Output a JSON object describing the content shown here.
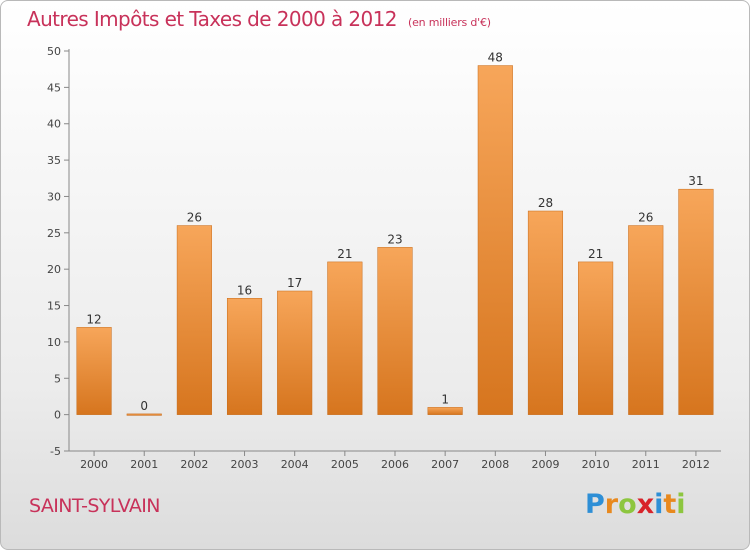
{
  "header": {
    "title": "Autres Impôts et Taxes de 2000 à 2012",
    "subtitle": "(en milliers d'€)"
  },
  "commune": "SAINT-SYLVAIN",
  "logo": {
    "text": "Proxiti",
    "letters": [
      {
        "ch": "P",
        "color": "#2e8fd6"
      },
      {
        "ch": "r",
        "color": "#e8891e"
      },
      {
        "ch": "o",
        "color": "#8dc63f"
      },
      {
        "ch": "x",
        "color": "#d8232a"
      },
      {
        "ch": "i",
        "color": "#2e8fd6"
      },
      {
        "ch": "t",
        "color": "#e8891e"
      },
      {
        "ch": "i",
        "color": "#8dc63f"
      }
    ]
  },
  "colors": {
    "title": "#c8325a",
    "bar_light": "#f7a65a",
    "bar_dark": "#d6751e",
    "axis": "#888888"
  },
  "chart_data": {
    "type": "bar",
    "categories": [
      "2000",
      "2001",
      "2002",
      "2003",
      "2004",
      "2005",
      "2006",
      "2007",
      "2008",
      "2009",
      "2010",
      "2011",
      "2012"
    ],
    "values": [
      12,
      0,
      26,
      16,
      17,
      21,
      23,
      1,
      48,
      28,
      21,
      26,
      31
    ],
    "ylim": [
      -5,
      50
    ],
    "yticks": [
      -5,
      0,
      5,
      10,
      15,
      20,
      25,
      30,
      35,
      40,
      45,
      50
    ],
    "grid": false,
    "xlabel": "",
    "ylabel": ""
  }
}
